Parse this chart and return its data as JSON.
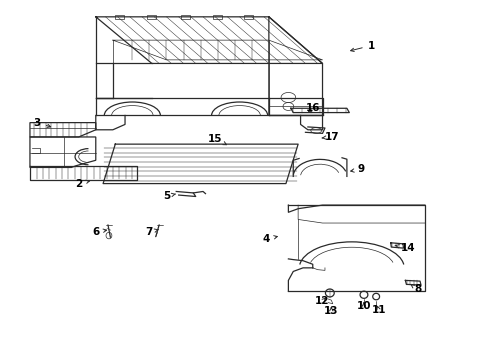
{
  "bg_color": "#ffffff",
  "line_color": "#2a2a2a",
  "label_color": "#000000",
  "fig_width": 4.89,
  "fig_height": 3.6,
  "dpi": 100,
  "label_fontsize": 7.5,
  "lw_main": 0.9,
  "lw_thin": 0.5,
  "lw_rib": 0.35,
  "labels": {
    "1": [
      0.76,
      0.875,
      0.71,
      0.858
    ],
    "2": [
      0.16,
      0.49,
      0.19,
      0.5
    ],
    "3": [
      0.075,
      0.66,
      0.11,
      0.645
    ],
    "4": [
      0.545,
      0.335,
      0.575,
      0.345
    ],
    "5": [
      0.34,
      0.455,
      0.365,
      0.463
    ],
    "6": [
      0.195,
      0.355,
      0.225,
      0.362
    ],
    "7": [
      0.305,
      0.355,
      0.33,
      0.364
    ],
    "8": [
      0.855,
      0.195,
      0.84,
      0.21
    ],
    "9": [
      0.74,
      0.53,
      0.71,
      0.523
    ],
    "10": [
      0.745,
      0.148,
      0.745,
      0.168
    ],
    "11": [
      0.775,
      0.138,
      0.77,
      0.158
    ],
    "12": [
      0.66,
      0.162,
      0.672,
      0.178
    ],
    "13": [
      0.678,
      0.135,
      0.678,
      0.155
    ],
    "14": [
      0.835,
      0.31,
      0.808,
      0.318
    ],
    "15": [
      0.44,
      0.615,
      0.465,
      0.597
    ],
    "16": [
      0.64,
      0.7,
      0.625,
      0.682
    ],
    "17": [
      0.68,
      0.62,
      0.658,
      0.617
    ]
  }
}
